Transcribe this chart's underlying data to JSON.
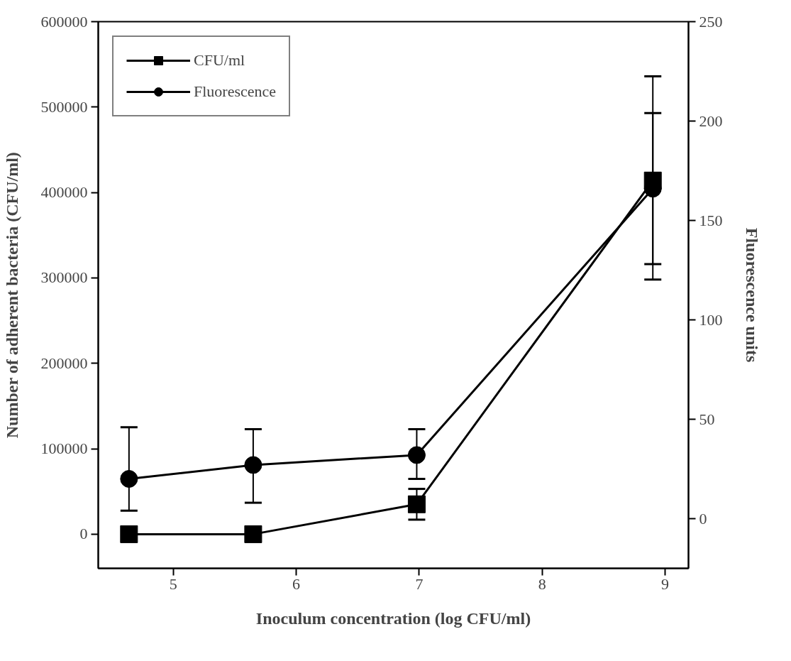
{
  "chart_data": {
    "type": "line",
    "xlabel": "Inoculum concentration (log CFU/ml)",
    "ylabel": "Number of adherent bacteria (CFU/ml)",
    "y2label": "Fluorescence units",
    "x": [
      4.64,
      5.65,
      6.98,
      8.9
    ],
    "xlim": [
      4.39,
      9.19
    ],
    "xticks": [
      5,
      6,
      7,
      8,
      9
    ],
    "ylim": [
      -40000,
      600000
    ],
    "yticks": [
      0,
      100000,
      200000,
      300000,
      400000,
      500000,
      600000
    ],
    "y2lim": [
      -25,
      250
    ],
    "y2ticks": [
      0,
      50,
      100,
      150,
      200,
      250
    ],
    "series": [
      {
        "name": "CFU/ml",
        "color": "#000000",
        "marker": "square",
        "values": [
          0,
          0,
          35000,
          414000
        ],
        "errors": [
          null,
          null,
          [
            17000,
            53000
          ],
          [
            298000,
            536000
          ]
        ]
      },
      {
        "name": "Fluorescence",
        "color": "#000000",
        "marker": "circle",
        "axis": "y2",
        "values": [
          20,
          27,
          32,
          166
        ],
        "errors": [
          [
            4,
            46
          ],
          [
            8,
            45
          ],
          [
            20,
            45
          ],
          [
            128,
            204
          ]
        ]
      }
    ],
    "legend": "top left",
    "grid": false,
    "line_style": "solid"
  }
}
